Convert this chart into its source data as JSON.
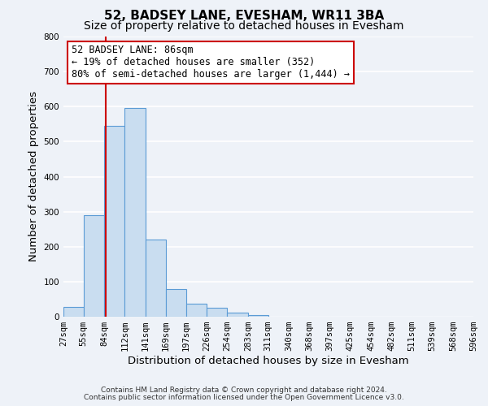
{
  "title": "52, BADSEY LANE, EVESHAM, WR11 3BA",
  "subtitle": "Size of property relative to detached houses in Evesham",
  "xlabel": "Distribution of detached houses by size in Evesham",
  "ylabel": "Number of detached properties",
  "bar_edges": [
    27,
    55,
    84,
    112,
    141,
    169,
    197,
    226,
    254,
    283,
    311,
    340,
    368,
    397,
    425,
    454,
    482,
    511,
    539,
    568,
    596
  ],
  "bar_heights": [
    28,
    290,
    545,
    595,
    220,
    80,
    38,
    25,
    12,
    5,
    0,
    0,
    0,
    0,
    0,
    0,
    0,
    0,
    0,
    0
  ],
  "bar_color": "#c9ddf0",
  "bar_edge_color": "#5b9bd5",
  "ylim": [
    0,
    800
  ],
  "yticks": [
    0,
    100,
    200,
    300,
    400,
    500,
    600,
    700,
    800
  ],
  "property_sqm": 86,
  "red_line_color": "#cc0000",
  "annotation_line1": "52 BADSEY LANE: 86sqm",
  "annotation_line2": "← 19% of detached houses are smaller (352)",
  "annotation_line3": "80% of semi-detached houses are larger (1,444) →",
  "annotation_box_color": "#ffffff",
  "annotation_box_edge": "#cc0000",
  "footer_line1": "Contains HM Land Registry data © Crown copyright and database right 2024.",
  "footer_line2": "Contains public sector information licensed under the Open Government Licence v3.0.",
  "background_color": "#eef2f8",
  "grid_color": "#ffffff",
  "title_fontsize": 11,
  "subtitle_fontsize": 10,
  "axis_label_fontsize": 9.5,
  "tick_fontsize": 7.5,
  "annotation_fontsize": 8.5,
  "footer_fontsize": 6.5
}
